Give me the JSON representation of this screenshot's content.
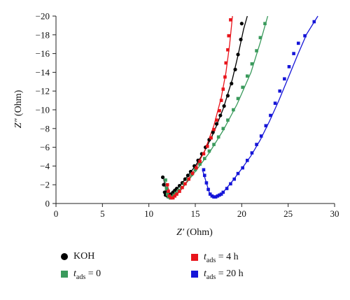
{
  "chart_data": {
    "type": "scatter",
    "title": "",
    "xlabel": {
      "sym": "Z′",
      "unit": "(Ohm)"
    },
    "ylabel": {
      "sym": "Z″",
      "unit": "(Ohm)"
    },
    "xlim": [
      0,
      30
    ],
    "ylim": [
      0,
      -20
    ],
    "xticks": [
      "0",
      "5",
      "10",
      "15",
      "20",
      "25",
      "30"
    ],
    "yticks": [
      "0",
      "−2",
      "−4",
      "−6",
      "−8",
      "−10",
      "−12",
      "−14",
      "−16",
      "−18",
      "−20"
    ],
    "grid": false,
    "legend_position": "bottom",
    "series": [
      {
        "key": "koh",
        "marker": "circle",
        "color": "#000000",
        "points": [
          [
            11.5,
            -2.8
          ],
          [
            11.6,
            -2.0
          ],
          [
            11.7,
            -1.2
          ],
          [
            11.8,
            -0.9
          ],
          [
            12.0,
            -0.8
          ],
          [
            12.2,
            -0.9
          ],
          [
            12.4,
            -1.0
          ],
          [
            12.6,
            -1.2
          ],
          [
            12.8,
            -1.4
          ],
          [
            13.0,
            -1.6
          ],
          [
            13.3,
            -1.9
          ],
          [
            13.6,
            -2.2
          ],
          [
            13.9,
            -2.6
          ],
          [
            14.2,
            -3.0
          ],
          [
            14.5,
            -3.4
          ],
          [
            14.9,
            -4.0
          ],
          [
            15.3,
            -4.6
          ],
          [
            15.7,
            -5.3
          ],
          [
            16.1,
            -6.0
          ],
          [
            16.5,
            -6.8
          ],
          [
            16.9,
            -7.6
          ],
          [
            17.3,
            -8.5
          ],
          [
            17.7,
            -9.4
          ],
          [
            18.1,
            -10.4
          ],
          [
            18.5,
            -11.5
          ],
          [
            18.9,
            -12.8
          ],
          [
            19.3,
            -14.3
          ],
          [
            19.6,
            -15.9
          ],
          [
            19.9,
            -17.5
          ],
          [
            20.0,
            -19.2
          ]
        ],
        "fit": [
          [
            11.6,
            -2.6
          ],
          [
            11.9,
            -1.1
          ],
          [
            12.3,
            -0.8
          ],
          [
            13.0,
            -1.5
          ],
          [
            14.0,
            -2.7
          ],
          [
            15.0,
            -4.0
          ],
          [
            16.0,
            -5.6
          ],
          [
            17.0,
            -7.6
          ],
          [
            18.0,
            -10.1
          ],
          [
            19.0,
            -13.3
          ],
          [
            19.6,
            -15.8
          ],
          [
            20.2,
            -18.6
          ],
          [
            20.6,
            -20.0
          ]
        ]
      },
      {
        "key": "t0",
        "marker": "square",
        "color": "#3a9a5c",
        "points": [
          [
            11.8,
            -2.5
          ],
          [
            11.9,
            -1.6
          ],
          [
            12.0,
            -1.0
          ],
          [
            12.1,
            -0.7
          ],
          [
            12.3,
            -0.6
          ],
          [
            12.5,
            -0.7
          ],
          [
            12.7,
            -0.9
          ],
          [
            12.9,
            -1.1
          ],
          [
            13.2,
            -1.4
          ],
          [
            13.5,
            -1.7
          ],
          [
            13.8,
            -2.1
          ],
          [
            14.2,
            -2.6
          ],
          [
            14.6,
            -3.1
          ],
          [
            15.0,
            -3.6
          ],
          [
            15.5,
            -4.2
          ],
          [
            16.0,
            -4.8
          ],
          [
            16.5,
            -5.6
          ],
          [
            17.0,
            -6.3
          ],
          [
            17.5,
            -7.1
          ],
          [
            18.0,
            -8.0
          ],
          [
            18.5,
            -8.9
          ],
          [
            19.1,
            -10.0
          ],
          [
            19.6,
            -11.2
          ],
          [
            20.1,
            -12.4
          ],
          [
            20.6,
            -13.6
          ],
          [
            21.1,
            -14.9
          ],
          [
            21.6,
            -16.3
          ],
          [
            22.0,
            -17.7
          ],
          [
            22.5,
            -19.2
          ]
        ],
        "fit": [
          [
            11.8,
            -2.3
          ],
          [
            12.1,
            -0.8
          ],
          [
            12.5,
            -0.6
          ],
          [
            13.5,
            -1.5
          ],
          [
            15.0,
            -3.4
          ],
          [
            16.5,
            -5.4
          ],
          [
            18.0,
            -7.8
          ],
          [
            19.5,
            -10.6
          ],
          [
            21.0,
            -14.0
          ],
          [
            22.0,
            -17.2
          ],
          [
            22.6,
            -19.3
          ],
          [
            22.8,
            -20.0
          ]
        ]
      },
      {
        "key": "t4",
        "marker": "square",
        "color": "#e8141b",
        "points": [
          [
            12.0,
            -2.0
          ],
          [
            12.1,
            -1.3
          ],
          [
            12.2,
            -0.8
          ],
          [
            12.4,
            -0.6
          ],
          [
            12.6,
            -0.6
          ],
          [
            12.8,
            -0.8
          ],
          [
            13.0,
            -1.0
          ],
          [
            13.3,
            -1.3
          ],
          [
            13.6,
            -1.7
          ],
          [
            13.9,
            -2.1
          ],
          [
            14.3,
            -2.6
          ],
          [
            14.7,
            -3.2
          ],
          [
            15.1,
            -3.8
          ],
          [
            15.5,
            -4.5
          ],
          [
            15.9,
            -5.3
          ],
          [
            16.3,
            -6.1
          ],
          [
            16.7,
            -7.0
          ],
          [
            17.0,
            -7.9
          ],
          [
            17.3,
            -8.9
          ],
          [
            17.6,
            -9.9
          ],
          [
            17.8,
            -11.0
          ],
          [
            18.0,
            -12.2
          ],
          [
            18.2,
            -13.5
          ],
          [
            18.3,
            -15.0
          ],
          [
            18.5,
            -16.4
          ],
          [
            18.6,
            -17.9
          ],
          [
            18.8,
            -19.6
          ]
        ],
        "fit": [
          [
            12.0,
            -1.9
          ],
          [
            12.4,
            -0.6
          ],
          [
            13.0,
            -0.9
          ],
          [
            14.0,
            -2.2
          ],
          [
            15.0,
            -3.7
          ],
          [
            16.0,
            -5.6
          ],
          [
            17.0,
            -8.3
          ],
          [
            17.8,
            -11.3
          ],
          [
            18.3,
            -14.0
          ],
          [
            18.7,
            -17.0
          ],
          [
            19.0,
            -20.0
          ]
        ]
      },
      {
        "key": "t20",
        "marker": "square",
        "color": "#1515d8",
        "points": [
          [
            15.9,
            -3.6
          ],
          [
            16.0,
            -3.0
          ],
          [
            16.2,
            -2.2
          ],
          [
            16.4,
            -1.5
          ],
          [
            16.6,
            -1.0
          ],
          [
            16.8,
            -0.8
          ],
          [
            17.0,
            -0.7
          ],
          [
            17.2,
            -0.7
          ],
          [
            17.4,
            -0.8
          ],
          [
            17.6,
            -0.9
          ],
          [
            17.8,
            -1.0
          ],
          [
            18.0,
            -1.2
          ],
          [
            18.4,
            -1.6
          ],
          [
            18.8,
            -2.1
          ],
          [
            19.2,
            -2.6
          ],
          [
            19.6,
            -3.2
          ],
          [
            20.1,
            -3.8
          ],
          [
            20.6,
            -4.6
          ],
          [
            21.1,
            -5.4
          ],
          [
            21.6,
            -6.3
          ],
          [
            22.1,
            -7.2
          ],
          [
            22.6,
            -8.3
          ],
          [
            23.1,
            -9.4
          ],
          [
            23.6,
            -10.7
          ],
          [
            24.1,
            -12.0
          ],
          [
            24.6,
            -13.3
          ],
          [
            25.1,
            -14.6
          ],
          [
            25.6,
            -16.0
          ],
          [
            26.1,
            -17.1
          ],
          [
            26.8,
            -17.9
          ],
          [
            27.8,
            -19.4
          ]
        ],
        "fit": [
          [
            15.8,
            -3.5
          ],
          [
            16.5,
            -1.2
          ],
          [
            17.0,
            -0.7
          ],
          [
            18.0,
            -1.2
          ],
          [
            19.0,
            -2.4
          ],
          [
            20.0,
            -3.7
          ],
          [
            21.0,
            -5.1
          ],
          [
            22.0,
            -6.8
          ],
          [
            23.0,
            -8.8
          ],
          [
            24.0,
            -11.0
          ],
          [
            25.0,
            -13.4
          ],
          [
            26.0,
            -15.8
          ],
          [
            27.0,
            -18.1
          ],
          [
            28.2,
            -20.0
          ]
        ]
      }
    ],
    "legend": [
      {
        "key": "koh",
        "text": "KOH"
      },
      {
        "key": "t0",
        "var": "t",
        "sub": "ads",
        "rest": " = 0"
      },
      {
        "key": "t4",
        "var": "t",
        "sub": "ads",
        "rest": " = 4 h"
      },
      {
        "key": "t20",
        "var": "t",
        "sub": "ads",
        "rest": " = 20 h"
      }
    ]
  }
}
